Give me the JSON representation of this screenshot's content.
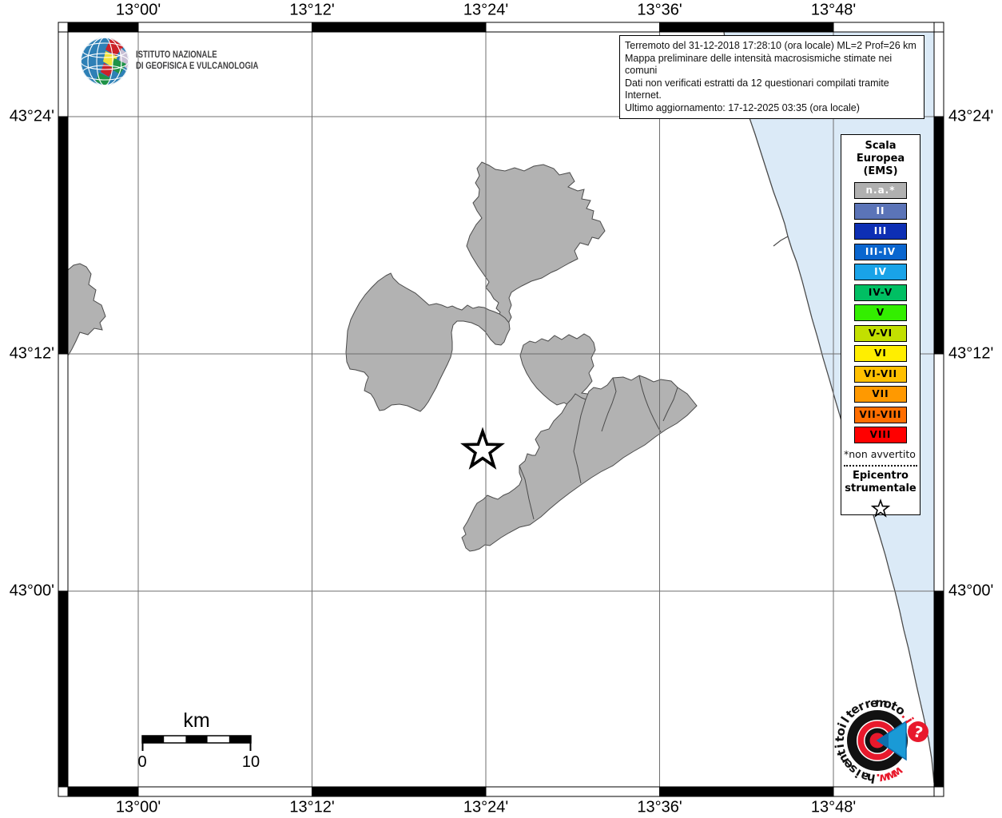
{
  "info_box": {
    "lines": [
      "Terremoto del 31-12-2018 17:28:10 (ora locale) ML=2 Prof=26 km",
      "Mappa preliminare delle intensità macrosismiche stimate nei comuni",
      "Dati non verificati estratti da 12 questionari compilati tramite Internet.",
      "Ultimo aggiornamento: 17-12-2025 03:35 (ora locale)"
    ]
  },
  "ingv_logo": {
    "name_line1": "ISTITUTO NAZIONALE",
    "name_line2": "DI GEOFISICA E VULCANOLOGIA"
  },
  "axes": {
    "longitude_ticks": [
      "13°00'",
      "13°12'",
      "13°24'",
      "13°36'",
      "13°48'"
    ],
    "latitude_ticks": [
      "43°24'",
      "43°12'",
      "43°00'"
    ]
  },
  "legend": {
    "title_lines": [
      "Scala",
      "Europea",
      "(EMS)"
    ],
    "entries": [
      {
        "label": "n.a.*",
        "color": "#b0b0b0",
        "text_color": "#ffffff"
      },
      {
        "label": "II",
        "color": "#5b74b8",
        "text_color": "#ffffff"
      },
      {
        "label": "III",
        "color": "#0d2fb4",
        "text_color": "#ffffff"
      },
      {
        "label": "III-IV",
        "color": "#0a66cf",
        "text_color": "#ffffff"
      },
      {
        "label": "IV",
        "color": "#19a3e8",
        "text_color": "#ffffff"
      },
      {
        "label": "IV-V",
        "color": "#00bf63",
        "text_color": "#000000"
      },
      {
        "label": "V",
        "color": "#33ee00",
        "text_color": "#000000"
      },
      {
        "label": "V-VI",
        "color": "#c2e000",
        "text_color": "#000000"
      },
      {
        "label": "VI",
        "color": "#ffee00",
        "text_color": "#000000"
      },
      {
        "label": "VI-VII",
        "color": "#ffc000",
        "text_color": "#000000"
      },
      {
        "label": "VII",
        "color": "#ff9900",
        "text_color": "#000000"
      },
      {
        "label": "VII-VIII",
        "color": "#ff6e00",
        "text_color": "#000000"
      },
      {
        "label": "VIII",
        "color": "#ff0000",
        "text_color": "#000000"
      }
    ],
    "footnote": "*non avvertito",
    "epicenter_label_lines": [
      "Epicentro",
      "strumentale"
    ]
  },
  "scale_bar": {
    "unit_label": "km",
    "start_label": "0",
    "end_label": "10"
  },
  "site_logo": {
    "url_text": "www.haisentitoilterremoto.it",
    "question_mark": "?",
    "accent_red": "#e8192c",
    "accent_blue": "#1a9ad6"
  },
  "map_colors": {
    "sea": "#dbeaf7",
    "land": "#b2b2b2",
    "land_border": "#4b4b4b",
    "grid": "#6f6f6f"
  }
}
